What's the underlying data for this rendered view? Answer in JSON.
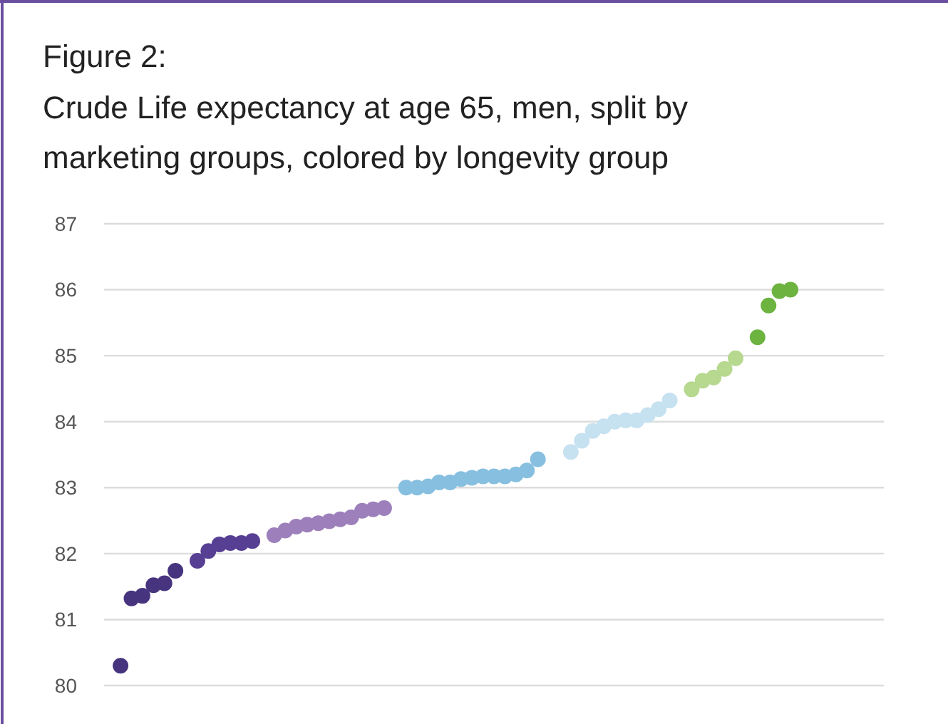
{
  "chart_data": {
    "type": "scatter",
    "title": "Figure 2:",
    "subtitle": "Crude Life expectancy at age 65, men, split by marketing groups, colored by longevity group",
    "categories": [
      null,
      null,
      null,
      null,
      null,
      null,
      null,
      null,
      null,
      null,
      null,
      null,
      null,
      null,
      null,
      null,
      null,
      null,
      null,
      null,
      null,
      null,
      null,
      null,
      null,
      null,
      null,
      null,
      null,
      null,
      null,
      null,
      null,
      null,
      null,
      null,
      null,
      null,
      null,
      null,
      null,
      null,
      null,
      null,
      null,
      null,
      null,
      null,
      null,
      null,
      null,
      null,
      null,
      null,
      null,
      null,
      null,
      null,
      null,
      null,
      null,
      null,
      null,
      null,
      null,
      null,
      null,
      null,
      null,
      null,
      null
    ],
    "values": [
      null,
      80.3,
      81.32,
      81.36,
      81.52,
      81.55,
      81.74,
      null,
      81.89,
      82.04,
      82.14,
      82.16,
      82.16,
      82.19,
      null,
      82.28,
      82.35,
      82.41,
      82.44,
      82.46,
      82.49,
      82.52,
      82.55,
      82.65,
      82.67,
      82.69,
      null,
      83.0,
      83.0,
      83.02,
      83.08,
      83.08,
      83.13,
      83.15,
      83.17,
      83.17,
      83.17,
      83.2,
      83.26,
      83.43,
      null,
      null,
      83.54,
      83.71,
      83.86,
      83.93,
      84.0,
      84.02,
      84.02,
      84.1,
      84.19,
      84.32,
      null,
      84.49,
      84.62,
      84.67,
      84.8,
      84.96,
      null,
      85.28,
      85.76,
      85.98,
      86.0,
      null,
      null,
      null,
      null,
      null,
      null,
      null,
      null
    ],
    "colors": [
      null,
      "#47347f",
      "#47347f",
      "#47347f",
      "#47347f",
      "#47347f",
      "#47347f",
      null,
      "#573f94",
      "#573f94",
      "#573f94",
      "#573f94",
      "#573f94",
      "#573f94",
      null,
      "#9d80bb",
      "#9d80bb",
      "#9d80bb",
      "#9d80bb",
      "#9d80bb",
      "#9d80bb",
      "#9d80bb",
      "#9d80bb",
      "#9d80bb",
      "#9d80bb",
      "#9d80bb",
      null,
      "#86bfdf",
      "#86bfdf",
      "#86bfdf",
      "#86bfdf",
      "#86bfdf",
      "#86bfdf",
      "#86bfdf",
      "#86bfdf",
      "#86bfdf",
      "#86bfdf",
      "#86bfdf",
      "#86bfdf",
      "#86bfdf",
      null,
      null,
      "#c6e1f0",
      "#c6e1f0",
      "#c6e1f0",
      "#c6e1f0",
      "#c6e1f0",
      "#c6e1f0",
      "#c6e1f0",
      "#c6e1f0",
      "#c6e1f0",
      "#c6e1f0",
      null,
      "#b6d88f",
      "#b6d88f",
      "#b6d88f",
      "#b6d88f",
      "#b6d88f",
      null,
      "#6cb33f",
      "#6cb33f",
      "#6cb33f",
      "#6cb33f",
      null,
      null,
      null,
      null,
      null,
      null,
      null,
      null
    ],
    "ylim": [
      80,
      87
    ],
    "yticks": [
      80,
      81,
      82,
      83,
      84,
      85,
      86,
      87
    ],
    "grid": "y",
    "tick_labels": "y",
    "marker": "circle"
  }
}
